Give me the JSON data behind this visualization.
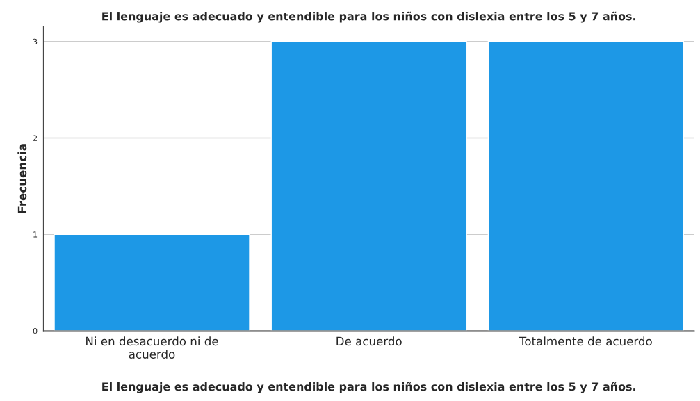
{
  "chart_data": {
    "type": "bar",
    "title": "El lenguaje es adecuado y entendible para los niños con dislexia entre los 5 y 7 años.",
    "xlabel": "El lenguaje es adecuado y entendible para los niños con dislexia entre los 5 y 7 años.",
    "ylabel": "Frecuencia",
    "categories": [
      "Ni en desacuerdo ni de\nacuerdo",
      "De acuerdo",
      "Totalmente de acuerdo"
    ],
    "values": [
      1,
      3,
      3
    ],
    "color": "#1d98e6",
    "ylim": [
      0,
      3.16
    ],
    "yticks": [
      0,
      1,
      2,
      3
    ],
    "grid": "y"
  }
}
